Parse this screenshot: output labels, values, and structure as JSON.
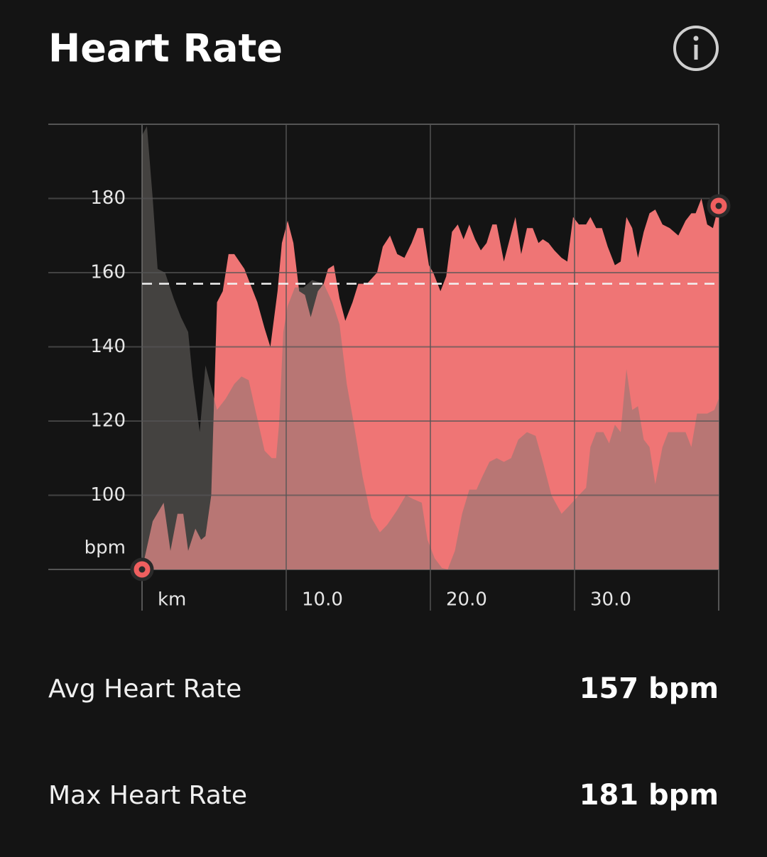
{
  "header": {
    "title": "Heart Rate"
  },
  "chart_data": {
    "type": "area",
    "ylabel": "bpm",
    "xlabel": "km",
    "xlim": [
      0,
      40
    ],
    "ylim": [
      80,
      200
    ],
    "xticks": [
      {
        "value": 10,
        "label": "10.0"
      },
      {
        "value": 20,
        "label": "20.0"
      },
      {
        "value": 30,
        "label": "30.0"
      }
    ],
    "yticks": [
      100,
      120,
      140,
      160,
      180
    ],
    "grid": true,
    "average": 157,
    "series": [
      {
        "color": "#ef7575",
        "x": [
          0,
          0.74,
          1.5,
          1.97,
          2.46,
          2.86,
          3.2,
          3.7,
          4.1,
          4.4,
          4.8,
          5.2,
          5.6,
          6.0,
          6.4,
          7.1,
          8.0,
          8.5,
          8.9,
          9.4,
          9.7,
          10.1,
          10.5,
          10.9,
          11.3,
          11.7,
          12.2,
          12.6,
          12.9,
          13.3,
          13.7,
          14.1,
          14.6,
          15.0,
          15.6,
          16.3,
          16.7,
          17.2,
          17.7,
          18.2,
          18.7,
          19.1,
          19.5,
          19.9,
          20.2,
          20.7,
          21.1,
          21.5,
          21.9,
          22.3,
          22.7,
          23.1,
          23.5,
          23.9,
          24.3,
          24.6,
          25.1,
          25.5,
          25.9,
          26.3,
          26.7,
          27.1,
          27.5,
          27.8,
          28.2,
          28.6,
          29.1,
          29.5,
          29.9,
          30.3,
          30.8,
          31.1,
          31.5,
          31.9,
          32.3,
          32.8,
          33.2,
          33.6,
          34.0,
          34.4,
          34.8,
          35.2,
          35.6,
          36.1,
          36.6,
          37.2,
          37.7,
          38.1,
          38.4,
          38.8,
          39.2,
          39.6,
          40.0
        ],
        "values": [
          80,
          93,
          98,
          85,
          95,
          95,
          85,
          91,
          88,
          89,
          100,
          152,
          155,
          165,
          165,
          161,
          152,
          145,
          140,
          155,
          168,
          174,
          168,
          155,
          154,
          148,
          155,
          157,
          161,
          162,
          153,
          147,
          152,
          157,
          157,
          160,
          167,
          170,
          165,
          164,
          168,
          172,
          172,
          162,
          160,
          155,
          159,
          171,
          173,
          169,
          173,
          169,
          166,
          168,
          173,
          173,
          163,
          169,
          175,
          165,
          172,
          172,
          168,
          169,
          168,
          166,
          164,
          163,
          175,
          173,
          173,
          175,
          172,
          172,
          167,
          162,
          163,
          175,
          172,
          164,
          171,
          176,
          177,
          173,
          172,
          170,
          174,
          176,
          176,
          180,
          173,
          172,
          178
        ]
      },
      {
        "color": "rgba(123,118,115,0.47)",
        "x": [
          0,
          0.34,
          0.74,
          1.08,
          1.6,
          2.2,
          2.7,
          3.2,
          3.5,
          4.0,
          4.4,
          4.8,
          5.2,
          5.8,
          6.4,
          6.9,
          7.4,
          7.8,
          8.5,
          9.0,
          9.3,
          9.5,
          9.8,
          10.1,
          10.6,
          11.2,
          11.8,
          12.6,
          13.2,
          13.7,
          14.2,
          14.7,
          15.3,
          15.9,
          16.5,
          17.0,
          17.7,
          18.3,
          18.8,
          19.4,
          19.8,
          20.3,
          20.8,
          21.2,
          21.7,
          22.2,
          22.7,
          23.2,
          23.6,
          24.1,
          24.6,
          25.1,
          25.6,
          26.1,
          26.7,
          27.3,
          27.8,
          28.4,
          29.1,
          29.6,
          30.3,
          30.8,
          31.1,
          31.5,
          32.0,
          32.4,
          32.8,
          33.2,
          33.6,
          34.0,
          34.4,
          34.8,
          35.2,
          35.6,
          36.1,
          36.5,
          37.2,
          37.7,
          38.1,
          38.5,
          39.2,
          39.7,
          40
        ],
        "values": [
          197,
          199.5,
          180,
          161,
          160,
          153,
          148,
          144,
          132,
          117,
          135,
          129,
          123,
          126,
          130,
          132,
          131,
          124,
          112,
          110,
          110,
          119,
          144,
          151,
          156,
          156,
          158,
          157,
          152,
          146,
          130,
          119,
          105,
          94,
          90,
          92,
          96,
          100,
          99,
          98,
          88,
          83,
          80.4,
          80,
          85,
          95,
          101.5,
          101.5,
          105,
          109,
          110,
          109,
          110,
          115,
          117,
          116,
          109,
          100,
          95,
          97,
          100,
          102,
          113,
          117,
          117,
          114,
          119,
          117,
          134,
          123,
          124,
          115,
          113,
          103,
          113,
          117,
          117,
          117,
          113,
          122,
          122,
          123,
          126
        ]
      }
    ]
  },
  "stats": [
    {
      "label": "Avg Heart Rate",
      "value": "157 bpm"
    },
    {
      "label": "Max Heart Rate",
      "value": "181 bpm"
    }
  ]
}
